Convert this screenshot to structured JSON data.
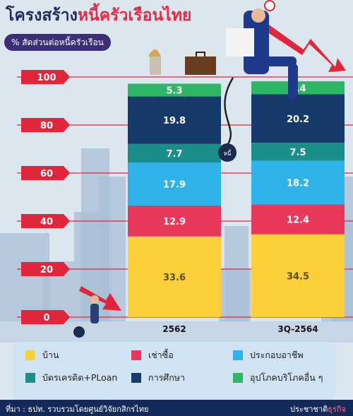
{
  "title": {
    "part1": "โครงสร้าง",
    "part2": "หนี้ครัวเรือนไทย"
  },
  "subtitle": "% สัดส่วนต่อหนี้ครัวเรือน",
  "colors": {
    "บ้าน": "#fcd03b",
    "เช่าซื้อ": "#e9395a",
    "ประกอบอาชีพ": "#2fb2e8",
    "บัตรเครดิต+PLoan": "#1a8f8a",
    "การศึกษา": "#163b6a",
    "อุปโภคบริโภคอื่น ๆ": "#2db665"
  },
  "icons": [
    "debt-ball-icon",
    "bell-icon",
    "falling-arrow-icon"
  ],
  "chart_data": {
    "type": "bar",
    "stacked": true,
    "categories": [
      "2562",
      "3Q-2564"
    ],
    "series": [
      {
        "name": "บ้าน",
        "values": [
          33.6,
          34.5
        ]
      },
      {
        "name": "เช่าซื้อ",
        "values": [
          12.9,
          12.4
        ]
      },
      {
        "name": "ประกอบอาชีพ",
        "values": [
          17.9,
          18.2
        ]
      },
      {
        "name": "บัตรเครดิต+PLoan",
        "values": [
          7.7,
          7.5
        ]
      },
      {
        "name": "การศึกษา",
        "values": [
          19.8,
          20.2
        ]
      },
      {
        "name": "อุปโภคบริโภคอื่น ๆ",
        "values": [
          5.3,
          5.4
        ]
      }
    ],
    "ylim": [
      0,
      100
    ],
    "yticks": [
      0,
      20,
      40,
      60,
      80,
      100
    ],
    "data_labels": true,
    "legend_position": "bottom"
  },
  "ball_label": "หนี้",
  "source": "ที่มา : ธปท. รวบรวมโดยศูนย์วิจัยกสิกรไทย",
  "brand": {
    "part1": "ประชาชาติ",
    "part2": "ธุรกิจ"
  }
}
